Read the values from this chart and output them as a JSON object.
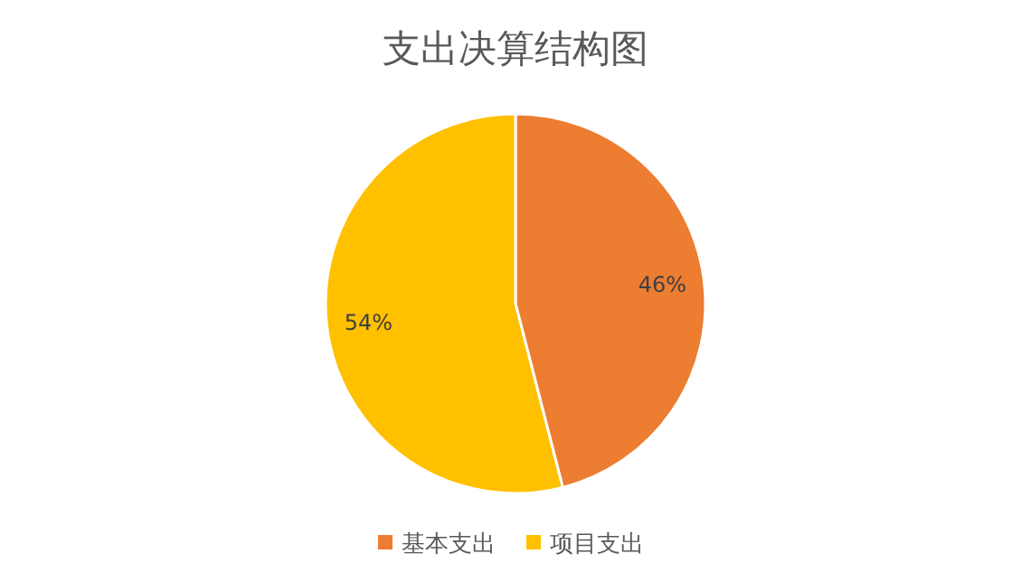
{
  "chart_data": {
    "type": "pie",
    "title": "支出决算结构图",
    "categories": [
      "基本支出",
      "项目支出"
    ],
    "values": [
      46,
      54
    ],
    "colors": [
      "#ed7d31",
      "#ffc000"
    ],
    "value_labels": [
      "46%",
      "54%"
    ],
    "legend": "bottom"
  }
}
